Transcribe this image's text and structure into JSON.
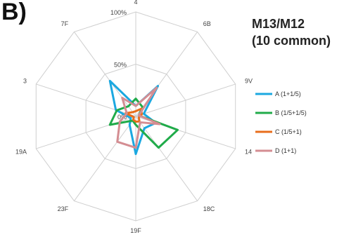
{
  "panel_label": "B)",
  "chart_data": {
    "type": "radar",
    "title_line1": "M13/M12",
    "title_line2": "(10 common)",
    "categories": [
      "4",
      "6B",
      "9V",
      "14",
      "18C",
      "19F",
      "23F",
      "19A",
      "3",
      "7F"
    ],
    "tick_labels": [
      "0%",
      "50%",
      "100%"
    ],
    "rmax": 1.0,
    "series": [
      {
        "name": "A (1+1/5)",
        "color": "#1ba8e0",
        "values": [
          0.1,
          0.36,
          0.08,
          0.2,
          0.14,
          0.36,
          0.1,
          0.05,
          0.2,
          0.42
        ]
      },
      {
        "name": "B (1/5+1/5)",
        "color": "#20ab4a",
        "values": [
          0.17,
          0.11,
          0.03,
          0.42,
          0.37,
          0.08,
          0.05,
          0.26,
          0.19,
          0.12
        ]
      },
      {
        "name": "C (1/5+1)",
        "color": "#e86e1c",
        "values": [
          0.05,
          0.09,
          0.06,
          0.03,
          0.06,
          0.05,
          0.04,
          0.02,
          0.1,
          0.05
        ]
      },
      {
        "name": "D (1+1)",
        "color": "#d48d92",
        "values": [
          0.1,
          0.34,
          0.03,
          0.24,
          0.07,
          0.3,
          0.3,
          0.16,
          0.09,
          0.22
        ]
      }
    ]
  }
}
